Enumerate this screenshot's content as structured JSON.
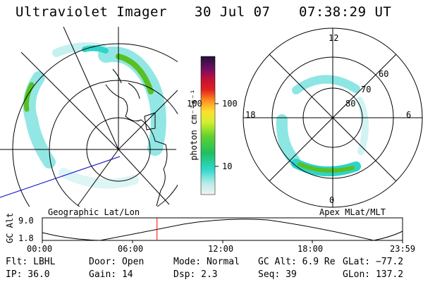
{
  "header": {
    "instrument": "Ultraviolet Imager",
    "date": "30 Jul 07",
    "time": "07:38:29 UT"
  },
  "colorbar": {
    "unit_label": "photon cm⁻²s⁻¹",
    "ticks": [
      "100",
      "10"
    ]
  },
  "panels": {
    "left_title": "Geographic Lat/Lon",
    "right_title": "Apex MLat/MLT"
  },
  "polar_labels": {
    "mlt_top": "12",
    "mlt_left": "18",
    "mlt_right": "6",
    "mlt_bottom": "0",
    "lat_60": "60",
    "lat_70": "70",
    "lat_80": "80"
  },
  "altitude_plot": {
    "ylabel": "GC Alt",
    "ymax": "9.0",
    "ymin": "1.8",
    "xticks": [
      "00:00",
      "06:00",
      "12:00",
      "18:00",
      "23:59"
    ],
    "current_time_fraction": 0.3184
  },
  "footer": {
    "flt": "Flt: LBHL",
    "ip": "IP: 36.0",
    "door": "Door: Open",
    "gain": "Gain: 14",
    "mode": "Mode: Normal",
    "dsp": "Dsp:    2.3",
    "gc_alt": "GC Alt: 6.9 Re",
    "seq": "Seq: 39",
    "glat": "GLat: −77.2",
    "glon": "GLon: 137.2"
  },
  "colors": {
    "aurora_low": "#7fe3e0",
    "aurora_mid": "#2fd3c8",
    "aurora_high": "#58c020",
    "time_marker": "#ff0000",
    "track_line": "#0000cc"
  }
}
